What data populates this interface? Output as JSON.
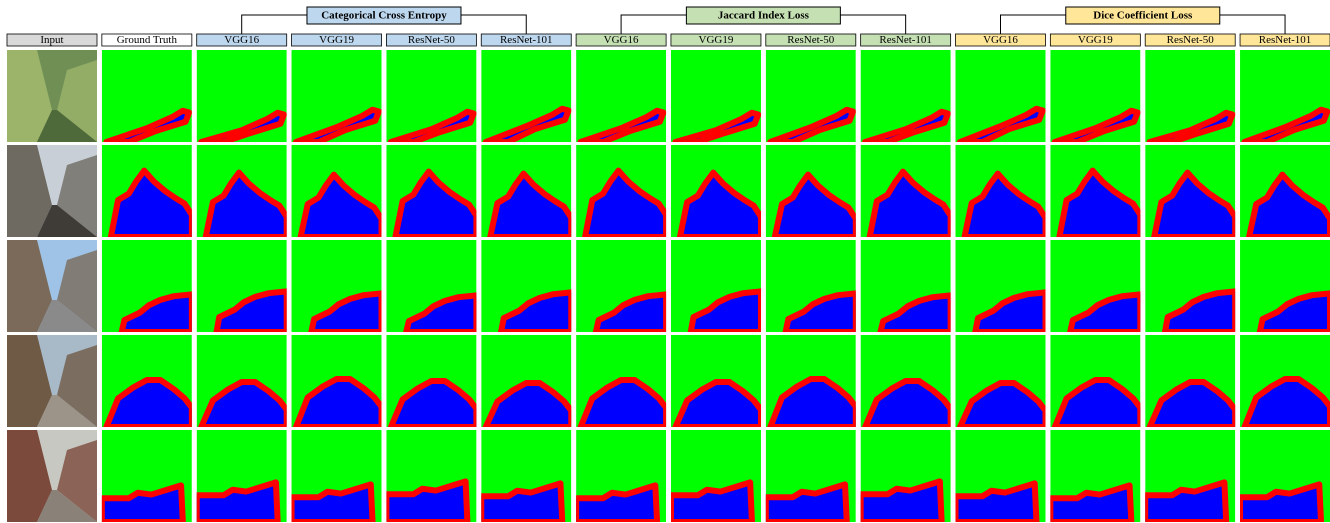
{
  "columns": [
    "Input",
    "Ground Truth"
  ],
  "groups": [
    {
      "title": "Categorical Cross Entropy",
      "models": [
        "VGG16",
        "VGG19",
        "ResNet-50",
        "ResNet-101"
      ]
    },
    {
      "title": "Jaccard Index Loss",
      "models": [
        "VGG16",
        "VGG19",
        "ResNet-50",
        "ResNet-101"
      ]
    },
    {
      "title": "Dice Coefficient Loss",
      "models": [
        "VGG16",
        "VGG19",
        "ResNet-50",
        "ResNet-101"
      ]
    }
  ]
}
